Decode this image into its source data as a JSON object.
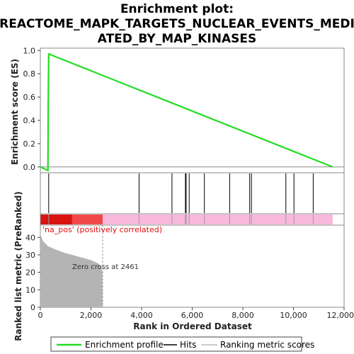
{
  "title_line1": "Enrichment plot:",
  "title_line2": "REACTOME_MAPK_TARGETS_NUCLEAR_EVENTS_MEDI",
  "title_line3": "ATED_BY_MAP_KINASES",
  "colors": {
    "enrichment_line": "#22dd22",
    "hits": "#000000",
    "zero_line": "#888888",
    "metric_fill": "#b4b4b4",
    "band_dark_red": "#d81410",
    "band_red": "#f04848",
    "band_pink": "#f8b8dc"
  },
  "chart_data": [
    {
      "type": "line",
      "name": "enrichment_plot",
      "ylabel": "Enrichment score (ES)",
      "xlim": [
        0,
        12000
      ],
      "ylim": [
        -0.05,
        1.02
      ],
      "y_ticks": [
        "0.0",
        "0.2",
        "0.4",
        "0.6",
        "0.8",
        "1.0"
      ],
      "y_tick_values": [
        0.0,
        0.2,
        0.4,
        0.6,
        0.8,
        1.0
      ],
      "series": [
        {
          "name": "Enrichment profile",
          "x": [
            0,
            300,
            310,
            330,
            11550
          ],
          "y": [
            0.0,
            -0.03,
            0.5,
            0.97,
            0.0
          ]
        }
      ]
    },
    {
      "type": "scatter",
      "name": "hits",
      "hit_positions": [
        330,
        3900,
        5200,
        5730,
        5760,
        5880,
        6480,
        7480,
        8270,
        8340,
        9700,
        10020,
        10780
      ]
    },
    {
      "type": "area",
      "name": "ranked_list_metric",
      "xlabel": "Rank in Ordered Dataset",
      "ylabel": "Ranked list metric (PreRanked)",
      "xlim": [
        0,
        12000
      ],
      "ylim": [
        0,
        47
      ],
      "x_ticks": [
        "0",
        "2,000",
        "4,000",
        "6,000",
        "8,000",
        "10,000",
        "12,000"
      ],
      "x_tick_values": [
        0,
        2000,
        4000,
        6000,
        8000,
        10000,
        12000
      ],
      "y_ticks": [
        "0",
        "10",
        "20",
        "30",
        "40"
      ],
      "y_tick_values": [
        0,
        10,
        20,
        30,
        40
      ],
      "x": [
        0,
        20,
        100,
        300,
        600,
        1000,
        1500,
        2000,
        2300,
        2400,
        2450,
        2461
      ],
      "y": [
        46,
        41,
        38,
        35,
        33,
        31,
        29,
        27,
        25,
        23,
        20,
        0
      ],
      "zero_cross": 2461,
      "annotations": {
        "positive_label": "'na_pos' (positively correlated)",
        "zero_cross_label": "Zero cross at 2461"
      }
    }
  ],
  "legend": {
    "items": [
      {
        "label": "Enrichment profile"
      },
      {
        "label": "Hits"
      },
      {
        "label": "Ranking metric scores"
      }
    ]
  }
}
